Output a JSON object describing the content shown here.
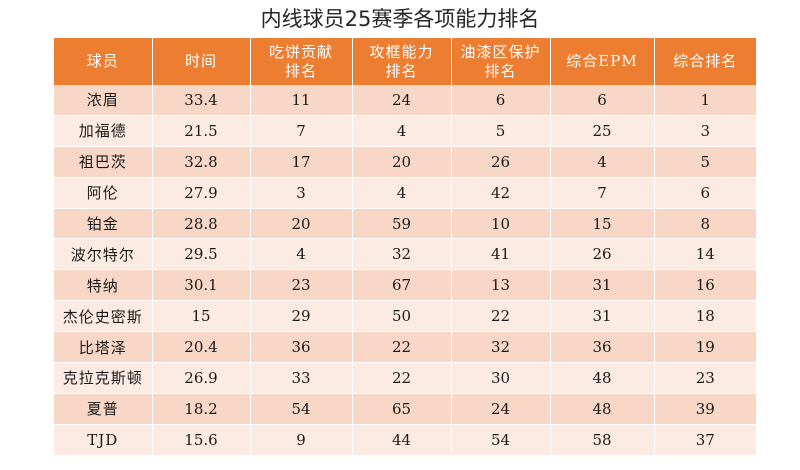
{
  "title": "内线球员25赛季各项能力排名",
  "table": {
    "headers": [
      [
        "球员"
      ],
      [
        "时间"
      ],
      [
        "吃饼贡献",
        "排名"
      ],
      [
        "攻框能力",
        "排名"
      ],
      [
        "油漆区保护",
        "排名"
      ],
      [
        "综合EPM"
      ],
      [
        "综合排名"
      ]
    ],
    "rows": [
      [
        "浓眉",
        "33.4",
        "11",
        "24",
        "6",
        "6",
        "1"
      ],
      [
        "加福德",
        "21.5",
        "7",
        "4",
        "5",
        "25",
        "3"
      ],
      [
        "祖巴茨",
        "32.8",
        "17",
        "20",
        "26",
        "4",
        "5"
      ],
      [
        "阿伦",
        "27.9",
        "3",
        "4",
        "42",
        "7",
        "6"
      ],
      [
        "铂金",
        "28.8",
        "20",
        "59",
        "10",
        "15",
        "8"
      ],
      [
        "波尔特尔",
        "29.5",
        "4",
        "32",
        "41",
        "26",
        "14"
      ],
      [
        "特纳",
        "30.1",
        "23",
        "67",
        "13",
        "31",
        "16"
      ],
      [
        "杰伦史密斯",
        "15",
        "29",
        "50",
        "22",
        "31",
        "18"
      ],
      [
        "比塔泽",
        "20.4",
        "36",
        "22",
        "32",
        "36",
        "19"
      ],
      [
        "克拉克斯顿",
        "26.9",
        "33",
        "22",
        "30",
        "48",
        "23"
      ],
      [
        "夏普",
        "18.2",
        "54",
        "65",
        "24",
        "48",
        "39"
      ],
      [
        "TJD",
        "15.6",
        "9",
        "44",
        "54",
        "58",
        "37"
      ]
    ]
  },
  "colors": {
    "header_bg": "#ed7d31",
    "row_odd_bg": "#f8d7c6",
    "row_even_bg": "#fcebe3"
  }
}
